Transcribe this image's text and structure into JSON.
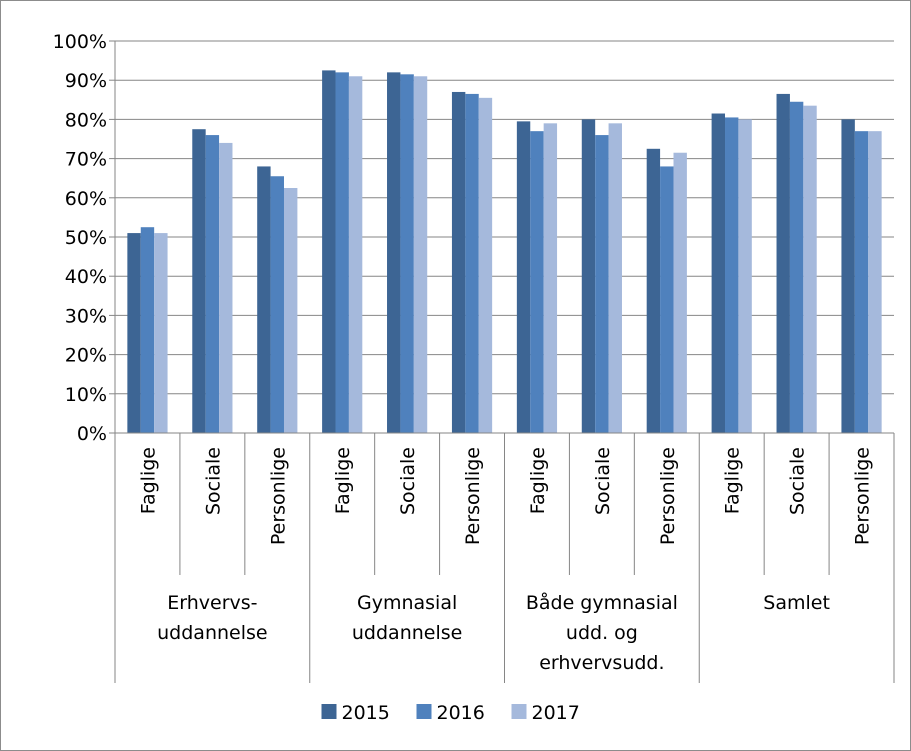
{
  "chart_data": {
    "type": "bar",
    "title": "",
    "xlabel": "",
    "ylabel": "",
    "ylim": [
      0,
      100
    ],
    "y_tick_labels": [
      "0%",
      "10%",
      "20%",
      "30%",
      "40%",
      "50%",
      "60%",
      "70%",
      "80%",
      "90%",
      "100%"
    ],
    "grid": "horizontal",
    "legend_position": "bottom",
    "groups": [
      {
        "label": "Erhvervs- uddannelse",
        "label_lines": [
          "Erhvervs-",
          "uddannelse"
        ],
        "categories": [
          "Faglige",
          "Sociale",
          "Personlige"
        ]
      },
      {
        "label": "Gymnasial uddannelse",
        "label_lines": [
          "Gymnasial",
          "uddannelse"
        ],
        "categories": [
          "Faglige",
          "Sociale",
          "Personlige"
        ]
      },
      {
        "label": "Både gymnasial udd. og erhvervsudd.",
        "label_lines": [
          "Både gymnasial",
          "udd. og",
          "erhvervsudd."
        ],
        "categories": [
          "Faglige",
          "Sociale",
          "Personlige"
        ]
      },
      {
        "label": "Samlet",
        "label_lines": [
          "Samlet"
        ],
        "categories": [
          "Faglige",
          "Sociale",
          "Personlige"
        ]
      }
    ],
    "series": [
      {
        "name": "2015",
        "color": "#3d6594",
        "values": [
          51,
          77.5,
          68,
          92.5,
          92,
          87,
          79.5,
          80,
          72.5,
          81.5,
          86.5,
          80
        ]
      },
      {
        "name": "2016",
        "color": "#4f81bd",
        "values": [
          52.5,
          76,
          65.5,
          92,
          91.5,
          86.5,
          77,
          76,
          68,
          80.5,
          84.5,
          77
        ]
      },
      {
        "name": "2017",
        "color": "#a5b9dc",
        "values": [
          51,
          74,
          62.5,
          91,
          91,
          85.5,
          79,
          79,
          71.5,
          80,
          83.5,
          77
        ]
      }
    ]
  }
}
